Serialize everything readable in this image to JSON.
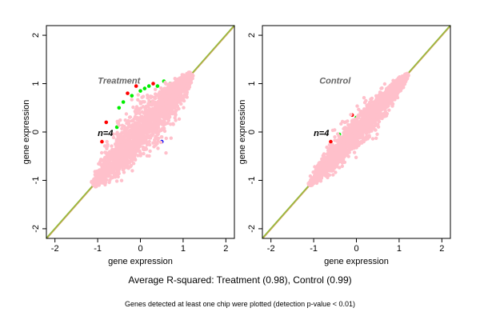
{
  "chart_data": [
    {
      "type": "scatter",
      "title": "Treatment",
      "annotation": "n=4",
      "xlabel": "gene expression",
      "ylabel": "gene expression",
      "xlim": [
        -2.2,
        2.2
      ],
      "ylim": [
        -2.2,
        2.2
      ],
      "xticks": [
        -2,
        -1,
        0,
        1,
        2
      ],
      "yticks": [
        -2,
        -1,
        0,
        1,
        2
      ],
      "reference_line": "y = x",
      "cloud": {
        "x_range": [
          -1.1,
          1.2
        ],
        "spread": 0.28,
        "color": "#ffc0cb"
      },
      "points": [
        {
          "x": -0.9,
          "y": -0.2,
          "color": "#ff0000"
        },
        {
          "x": -0.8,
          "y": 0.2,
          "color": "#ff0000"
        },
        {
          "x": -0.55,
          "y": 0.1,
          "color": "#00ee00"
        },
        {
          "x": -0.5,
          "y": 0.5,
          "color": "#00ee00"
        },
        {
          "x": -0.4,
          "y": 0.62,
          "color": "#00ee00"
        },
        {
          "x": -0.3,
          "y": 0.8,
          "color": "#ff0000"
        },
        {
          "x": -0.2,
          "y": 0.75,
          "color": "#00ee00"
        },
        {
          "x": -0.1,
          "y": 0.95,
          "color": "#ff0000"
        },
        {
          "x": 0.0,
          "y": 0.85,
          "color": "#00ee00"
        },
        {
          "x": 0.1,
          "y": 0.9,
          "color": "#00ee00"
        },
        {
          "x": 0.2,
          "y": 0.95,
          "color": "#00ee00"
        },
        {
          "x": 0.3,
          "y": 1.0,
          "color": "#ff0000"
        },
        {
          "x": 0.4,
          "y": 0.95,
          "color": "#00ee00"
        },
        {
          "x": 0.55,
          "y": 1.05,
          "color": "#00ee00"
        },
        {
          "x": 0.6,
          "y": 0.8,
          "color": "#ff0000"
        },
        {
          "x": 0.7,
          "y": 1.0,
          "color": "#00ee00"
        },
        {
          "x": 0.8,
          "y": 0.95,
          "color": "#00ee00"
        },
        {
          "x": 0.9,
          "y": 1.05,
          "color": "#00ee00"
        },
        {
          "x": 0.5,
          "y": -0.2,
          "color": "#0000ff"
        },
        {
          "x": -0.6,
          "y": -0.45,
          "color": "#ff0000"
        },
        {
          "x": 0.25,
          "y": 0.6,
          "color": "#00ee00"
        }
      ]
    },
    {
      "type": "scatter",
      "title": "Control",
      "annotation": "n=4",
      "xlabel": "gene expression",
      "ylabel": "gene expression",
      "xlim": [
        -2.2,
        2.2
      ],
      "ylim": [
        -2.2,
        2.2
      ],
      "xticks": [
        -2,
        -1,
        0,
        1,
        2
      ],
      "yticks": [
        -2,
        -1,
        0,
        1,
        2
      ],
      "reference_line": "y = x",
      "cloud": {
        "x_range": [
          -1.1,
          1.2
        ],
        "spread": 0.18,
        "color": "#ffc0cb"
      },
      "points": [
        {
          "x": -0.6,
          "y": -0.2,
          "color": "#ff0000"
        },
        {
          "x": -0.4,
          "y": -0.05,
          "color": "#00ee00"
        },
        {
          "x": -0.1,
          "y": 0.35,
          "color": "#ff0000"
        },
        {
          "x": 0.0,
          "y": 0.3,
          "color": "#00ee00"
        },
        {
          "x": 0.2,
          "y": 0.35,
          "color": "#ff0000"
        },
        {
          "x": 0.45,
          "y": 0.6,
          "color": "#00ee00"
        },
        {
          "x": 0.6,
          "y": 0.75,
          "color": "#ff0000"
        },
        {
          "x": 0.8,
          "y": 0.85,
          "color": "#ff0000"
        },
        {
          "x": 0.9,
          "y": 0.9,
          "color": "#00ee00"
        },
        {
          "x": -0.55,
          "y": -0.55,
          "color": "#0000ff"
        },
        {
          "x": -0.8,
          "y": -0.75,
          "color": "#00ee00"
        },
        {
          "x": -0.3,
          "y": -0.15,
          "color": "#ffcc00"
        },
        {
          "x": 0.35,
          "y": 0.15,
          "color": "#00ee00"
        }
      ]
    }
  ],
  "footer": {
    "main": "Average R-squared: Treatment (0.98), Control (0.99)",
    "note": "Genes detected at least one chip were plotted (detection p-value < 0.01)"
  }
}
